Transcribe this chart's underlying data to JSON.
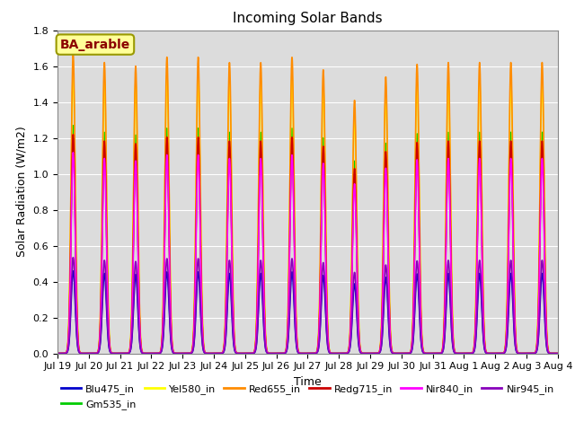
{
  "title": "Incoming Solar Bands",
  "xlabel": "Time",
  "ylabel": "Solar Radiation (W/m2)",
  "annotation_text": "BA_arable",
  "annotation_color": "#8B0000",
  "annotation_bg": "#FFFF99",
  "annotation_border": "#999900",
  "ylim": [
    0,
    1.8
  ],
  "series": [
    {
      "label": "Blu475_in",
      "color": "#0000CC",
      "scale": 0.275,
      "linewidth": 1.2
    },
    {
      "label": "Gm535_in",
      "color": "#00CC00",
      "scale": 0.76,
      "linewidth": 1.2
    },
    {
      "label": "Yel580_in",
      "color": "#FFFF00",
      "scale": 0.94,
      "linewidth": 1.2
    },
    {
      "label": "Red655_in",
      "color": "#FF8C00",
      "scale": 1.0,
      "linewidth": 1.2
    },
    {
      "label": "Redg715_in",
      "color": "#CC0000",
      "scale": 0.73,
      "linewidth": 1.2
    },
    {
      "label": "Nir840_in",
      "color": "#FF00FF",
      "scale": 0.67,
      "linewidth": 1.2
    },
    {
      "label": "Nir945_in",
      "color": "#8800BB",
      "scale": 0.32,
      "linewidth": 1.2
    }
  ],
  "bg_color": "#DCDCDC",
  "grid_color": "#FFFFFF",
  "n_days": 16,
  "sigma": 0.065,
  "day_peak_amplitudes": [
    1.67,
    1.62,
    1.6,
    1.65,
    1.65,
    1.62,
    1.62,
    1.65,
    1.58,
    1.41,
    1.54,
    1.61,
    1.62,
    1.62,
    1.62,
    1.62
  ]
}
